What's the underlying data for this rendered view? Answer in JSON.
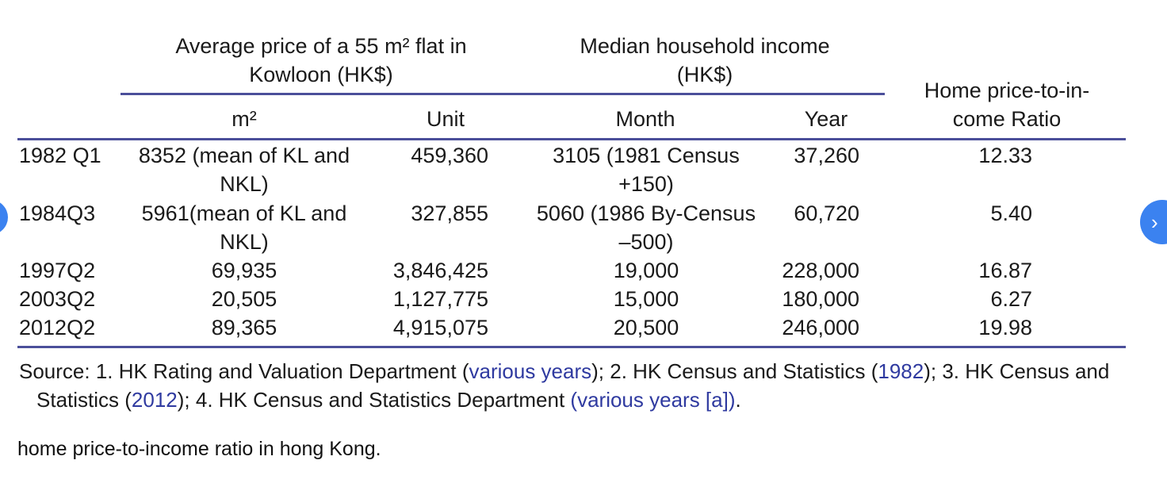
{
  "table": {
    "group_headers": {
      "price": [
        "Average price of a 55 m² flat in",
        "Kowloon (HK$)"
      ],
      "income": [
        "Median household income",
        "(HK$)"
      ],
      "ratio": [
        "Home price-to-in-",
        "come Ratio"
      ]
    },
    "sub_headers": [
      "m²",
      "Unit",
      "Month",
      "Year"
    ],
    "rows": [
      {
        "period": "1982 Q1",
        "m2": [
          "8352 (mean of KL and",
          "NKL)"
        ],
        "unit": "459,360",
        "month": [
          "3105 (1981 Census",
          "+150)"
        ],
        "year": "37,260",
        "ratio": "12.33"
      },
      {
        "period": "1984Q3",
        "m2": [
          "5961(mean of KL and",
          "NKL)"
        ],
        "unit": "327,855",
        "month": [
          "5060 (1986 By-Census",
          "–500)"
        ],
        "year": "60,720",
        "ratio": "5.40"
      },
      {
        "period": "1997Q2",
        "m2": [
          "69,935"
        ],
        "unit": "3,846,425",
        "month": [
          "19,000"
        ],
        "year": "228,000",
        "ratio": "16.87"
      },
      {
        "period": "2003Q2",
        "m2": [
          "20,505"
        ],
        "unit": "1,127,775",
        "month": [
          "15,000"
        ],
        "year": "180,000",
        "ratio": "6.27"
      },
      {
        "period": "2012Q2",
        "m2": [
          "89,365"
        ],
        "unit": "4,915,075",
        "month": [
          "20,500"
        ],
        "year": "246,000",
        "ratio": "19.98"
      }
    ],
    "source": {
      "p1": "Source: 1. HK Rating and Valuation Department (",
      "l1": "various years",
      "p2": "); 2. HK Census and Statistics (",
      "l2": "1982",
      "p3": "); 3. HK Census and",
      "p4": "Statistics (",
      "l3": "2012",
      "p5": "); 4. HK Census and Statistics Department ",
      "l4": "(various years [a])",
      "p6": "."
    }
  },
  "caption": "home price-to-income ratio in hong Kong.",
  "nav": {
    "next_icon": "›"
  },
  "colors": {
    "rule": "#4b4f9a",
    "link": "#2f3aa0",
    "nav_button": "#3b82f0"
  }
}
